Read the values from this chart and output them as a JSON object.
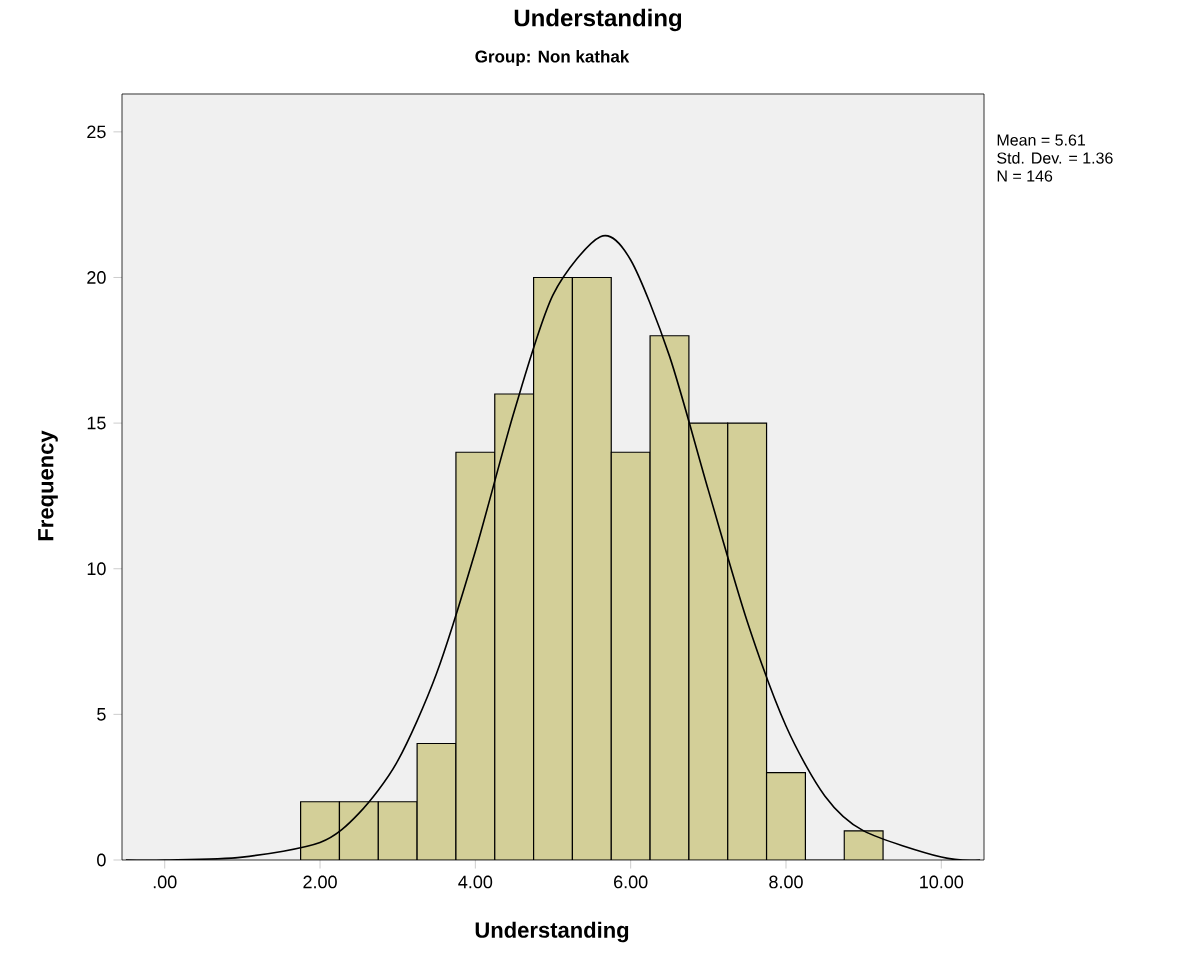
{
  "chart_data": {
    "type": "histogram",
    "title": "Understanding",
    "subtitle": "Group: Non kathak",
    "xlabel": "Understanding",
    "ylabel": "Frequency",
    "annotations": [
      "Mean = 5.61",
      "Std. Dev. = 1.36",
      "N = 146"
    ],
    "series": [
      {
        "color": "#d3cf98",
        "bins": [
          1.75,
          2.25,
          2.75,
          3.25,
          3.75,
          4.25,
          4.75,
          5.25,
          5.75,
          6.25,
          6.75,
          7.25,
          7.75,
          8.25,
          8.75,
          9.25
        ],
        "values": [
          2,
          2,
          2,
          4,
          14,
          16,
          20,
          20,
          14,
          18,
          15,
          15,
          3,
          0,
          1
        ]
      },
      {
        "type": "line",
        "color": "#000000",
        "x": [
          -0.5,
          0,
          1,
          2,
          2.5,
          3,
          3.5,
          4,
          4.5,
          5,
          5.61,
          6,
          6.5,
          7,
          7.5,
          8,
          8.5,
          9,
          10,
          10.5
        ],
        "values": [
          0,
          0,
          0.1,
          0.6,
          1.6,
          3.4,
          6.4,
          10.6,
          15.4,
          19.4,
          21.4,
          20.6,
          17.3,
          12.7,
          8.2,
          4.6,
          2.2,
          1.0,
          0.1,
          0
        ]
      }
    ],
    "xlim": [
      -0.55,
      10.55
    ],
    "ylim": [
      0,
      26.3
    ],
    "xticks": [
      {
        "value": 0,
        "label": ".00"
      },
      {
        "value": 2,
        "label": "2.00"
      },
      {
        "value": 4,
        "label": "4.00"
      },
      {
        "value": 6,
        "label": "6.00"
      },
      {
        "value": 8,
        "label": "8.00"
      },
      {
        "value": 10,
        "label": "10.00"
      }
    ],
    "yticks": [
      0,
      5,
      10,
      15,
      20,
      25
    ],
    "grid": false
  }
}
